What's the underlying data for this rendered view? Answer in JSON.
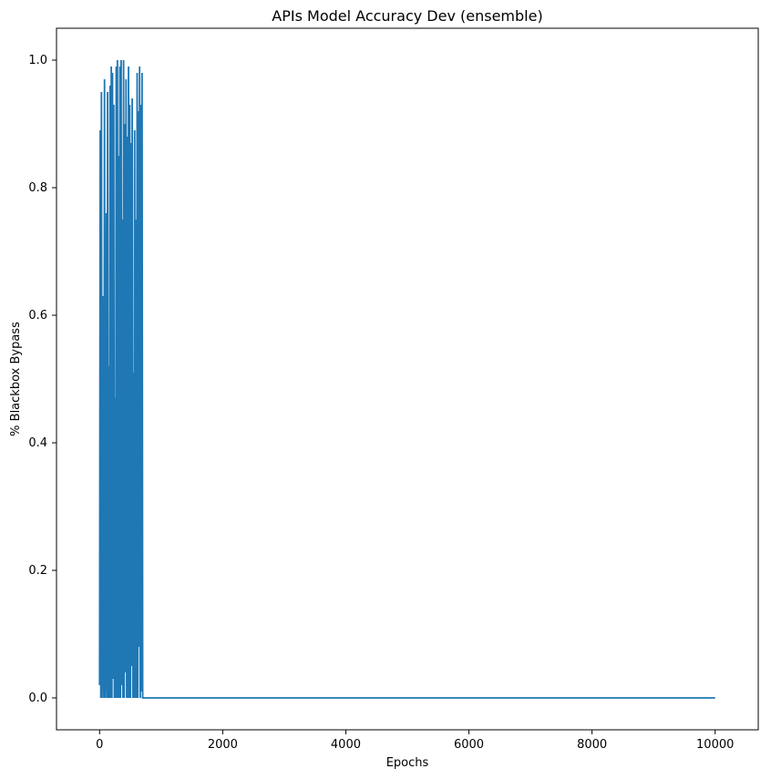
{
  "chart_data": {
    "type": "line",
    "title": "APIs Model Accuracy Dev (ensemble)",
    "xlabel": "Epochs",
    "ylabel": "% Blackbox Bypass",
    "xlim": [
      -700,
      10700
    ],
    "ylim": [
      -0.05,
      1.05
    ],
    "x_ticks": [
      0,
      2000,
      4000,
      6000,
      8000,
      10000
    ],
    "x_tick_labels": [
      "0",
      "2000",
      "4000",
      "6000",
      "8000",
      "10000"
    ],
    "y_ticks": [
      0.0,
      0.2,
      0.4,
      0.6,
      0.8,
      1.0
    ],
    "y_tick_labels": [
      "0.0",
      "0.2",
      "0.4",
      "0.6",
      "0.8",
      "1.0"
    ],
    "grid": false,
    "line_color": "#1f77b4",
    "series": [
      {
        "x": [
          0,
          10,
          20,
          30,
          40,
          50,
          60,
          70,
          80,
          90,
          100,
          110,
          120,
          130,
          140,
          150,
          160,
          170,
          180,
          190,
          200,
          210,
          220,
          230,
          240,
          250,
          260,
          270,
          280,
          290,
          300,
          310,
          320,
          330,
          340,
          350,
          360,
          370,
          380,
          390,
          400,
          410,
          420,
          430,
          440,
          450,
          460,
          470,
          480,
          490,
          500,
          510,
          520,
          530,
          540,
          550,
          560,
          570,
          580,
          590,
          600,
          610,
          620,
          630,
          640,
          650,
          660,
          670,
          680,
          690,
          700,
          720,
          10000
        ],
        "values": [
          0.02,
          0.89,
          0.0,
          0.95,
          0.0,
          0.63,
          0.07,
          0.0,
          0.97,
          0.0,
          0.06,
          0.76,
          0.0,
          0.95,
          0.0,
          0.52,
          0.0,
          0.96,
          0.0,
          0.99,
          0.0,
          0.98,
          0.03,
          0.93,
          0.0,
          0.47,
          0.0,
          0.99,
          0.0,
          1.0,
          0.0,
          0.85,
          0.0,
          0.99,
          0.0,
          1.0,
          0.02,
          0.75,
          0.0,
          1.0,
          0.0,
          0.9,
          0.04,
          0.97,
          0.0,
          0.88,
          0.0,
          0.99,
          0.0,
          0.93,
          0.0,
          0.87,
          0.05,
          0.94,
          0.0,
          0.51,
          0.0,
          0.89,
          0.0,
          0.75,
          0.0,
          0.98,
          0.0,
          0.92,
          0.08,
          0.99,
          0.0,
          0.93,
          0.01,
          0.98,
          0.0,
          0.0,
          0.0
        ]
      }
    ]
  }
}
